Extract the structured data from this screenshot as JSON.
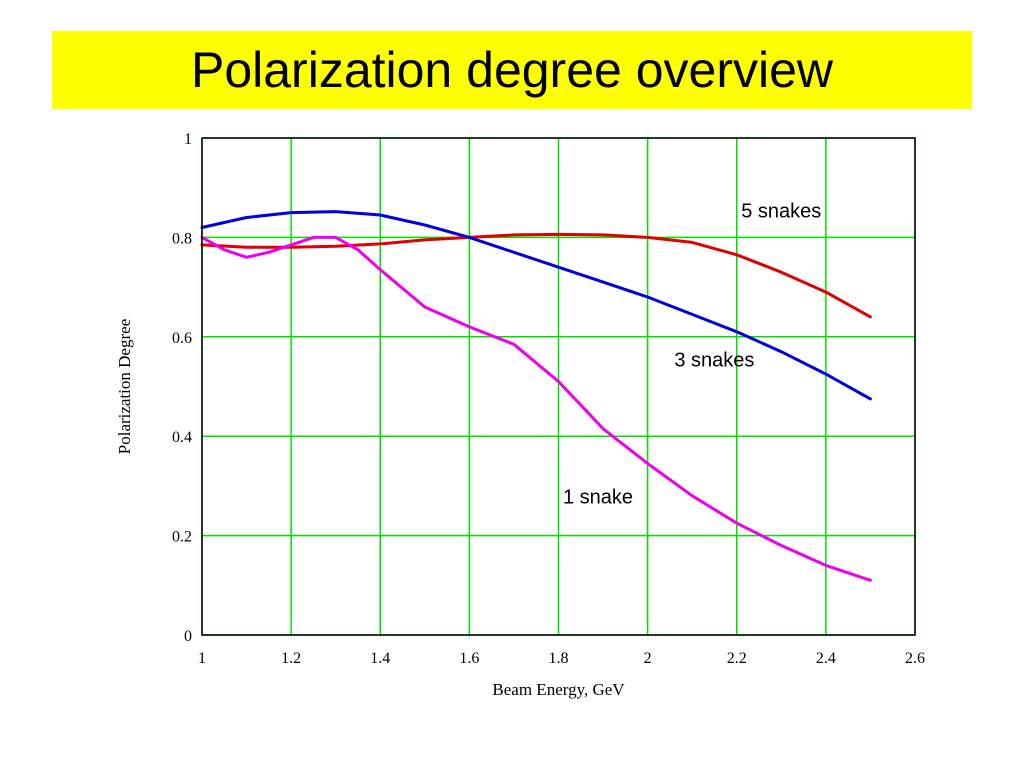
{
  "page": {
    "title": "Polarization degree overview",
    "title_bg": "#ffff00"
  },
  "chart_data": {
    "type": "line",
    "xlabel": "Beam Energy, GeV",
    "ylabel": "Polarization Degree",
    "xlim": [
      1,
      2.6
    ],
    "ylim": [
      0,
      1
    ],
    "xticks": [
      "1",
      "1.2",
      "1.4",
      "1.6",
      "1.8",
      "2",
      "2.2",
      "2.4",
      "2.6"
    ],
    "yticks": [
      "0",
      "0.2",
      "0.4",
      "0.6",
      "0.8",
      "1"
    ],
    "grid": true,
    "grid_color": "#00e000",
    "series": [
      {
        "name": "5 snakes",
        "color": "#e00000",
        "x": [
          1.0,
          1.1,
          1.2,
          1.3,
          1.4,
          1.5,
          1.6,
          1.7,
          1.8,
          1.9,
          2.0,
          2.1,
          2.2,
          2.3,
          2.4,
          2.5
        ],
        "y": [
          0.785,
          0.78,
          0.78,
          0.782,
          0.787,
          0.795,
          0.8,
          0.805,
          0.806,
          0.805,
          0.8,
          0.79,
          0.765,
          0.73,
          0.69,
          0.64
        ]
      },
      {
        "name": "3 snakes",
        "color": "#0000dd",
        "x": [
          1.0,
          1.1,
          1.2,
          1.3,
          1.4,
          1.5,
          1.6,
          1.7,
          1.8,
          1.9,
          2.0,
          2.1,
          2.2,
          2.3,
          2.4,
          2.5
        ],
        "y": [
          0.82,
          0.84,
          0.85,
          0.852,
          0.845,
          0.825,
          0.8,
          0.77,
          0.74,
          0.71,
          0.68,
          0.645,
          0.61,
          0.57,
          0.525,
          0.475
        ]
      },
      {
        "name": "1 snake",
        "color": "#ee00ee",
        "x": [
          1.0,
          1.05,
          1.1,
          1.15,
          1.2,
          1.25,
          1.3,
          1.35,
          1.4,
          1.5,
          1.6,
          1.7,
          1.8,
          1.9,
          2.0,
          2.1,
          2.2,
          2.3,
          2.4,
          2.5
        ],
        "y": [
          0.8,
          0.775,
          0.76,
          0.77,
          0.785,
          0.8,
          0.8,
          0.775,
          0.735,
          0.66,
          0.62,
          0.585,
          0.51,
          0.415,
          0.345,
          0.28,
          0.225,
          0.18,
          0.14,
          0.11
        ]
      }
    ],
    "annotations": [
      {
        "text": "5 snakes",
        "x": 2.21,
        "y": 0.84
      },
      {
        "text": "3 snakes",
        "x": 2.06,
        "y": 0.54
      },
      {
        "text": "1 snake",
        "x": 1.81,
        "y": 0.265
      }
    ]
  }
}
